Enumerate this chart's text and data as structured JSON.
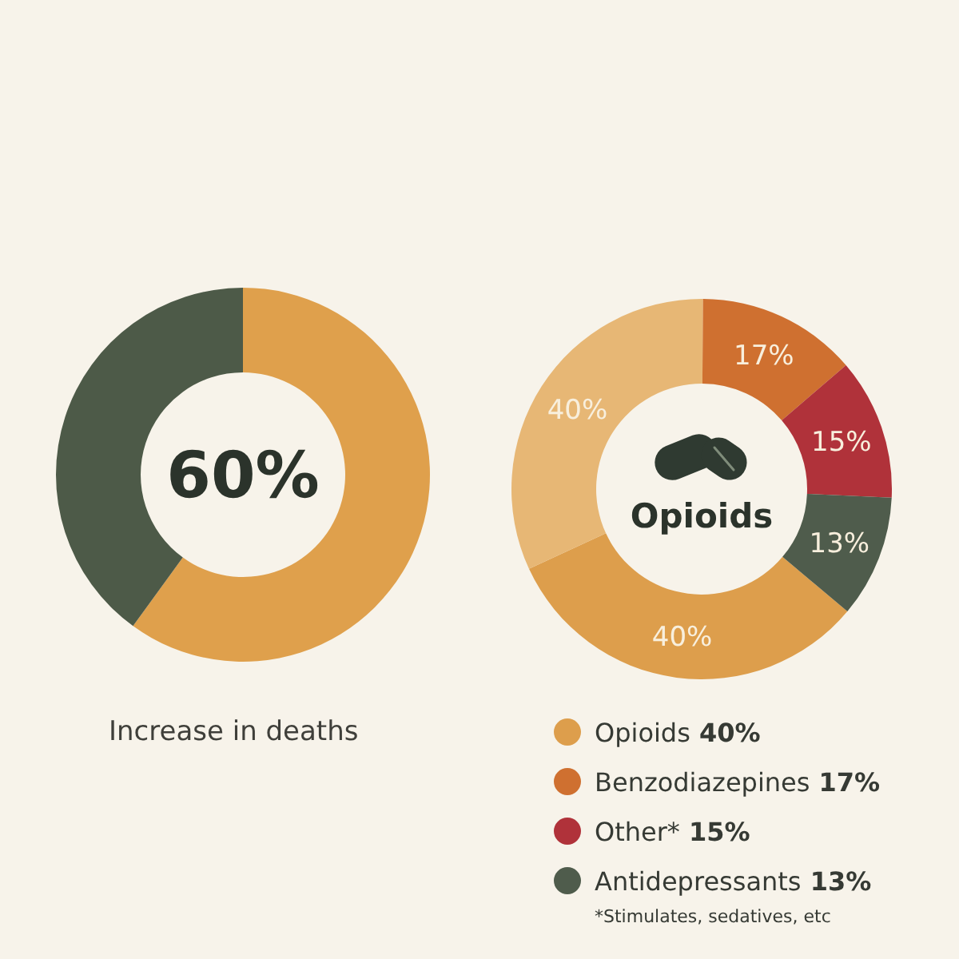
{
  "chart_data": [
    {
      "type": "donut",
      "title": "Increase in deaths",
      "categories": [
        null,
        null
      ],
      "values": [
        60,
        40
      ],
      "colors": [
        "#dfa04c",
        "#4d5a48"
      ],
      "annotations": [
        "60%"
      ]
    },
    {
      "type": "donut",
      "categories": [
        "Opioids",
        null,
        "Benzodiazepines",
        "Other*",
        "Antidepressants"
      ],
      "values": [
        40,
        40,
        17,
        15,
        13
      ],
      "colors": [
        "#dd9e4c",
        "#e7b775",
        "#cf7030",
        "#b0323a",
        "#4f5c4c"
      ],
      "value_labels": [
        "40%",
        "40%",
        "17%",
        "15%",
        "13%"
      ],
      "legend": "bottom",
      "annotations": [
        "Opioids",
        "*Stimulates, sedatives, etc"
      ]
    }
  ]
}
